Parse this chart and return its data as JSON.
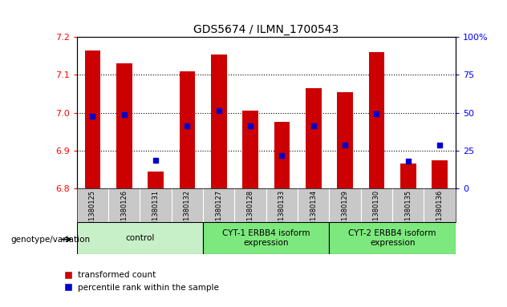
{
  "title": "GDS5674 / ILMN_1700543",
  "samples": [
    "GSM1380125",
    "GSM1380126",
    "GSM1380131",
    "GSM1380132",
    "GSM1380127",
    "GSM1380128",
    "GSM1380133",
    "GSM1380134",
    "GSM1380129",
    "GSM1380130",
    "GSM1380135",
    "GSM1380136"
  ],
  "bar_tops": [
    7.165,
    7.13,
    6.845,
    7.11,
    7.155,
    7.005,
    6.975,
    7.065,
    7.055,
    7.16,
    6.865,
    6.875
  ],
  "bar_base": 6.8,
  "blue_dots": [
    6.99,
    6.995,
    6.875,
    6.965,
    7.005,
    6.965,
    6.888,
    6.965,
    6.915,
    6.998,
    6.873,
    6.915
  ],
  "ylim": [
    6.8,
    7.2
  ],
  "yticks": [
    6.8,
    6.9,
    7.0,
    7.1,
    7.2
  ],
  "right_yticks": [
    0,
    25,
    50,
    75,
    100
  ],
  "right_ylabels": [
    "0",
    "25",
    "50",
    "75",
    "100%"
  ],
  "bar_color": "#cc0000",
  "dot_color": "#0000cc",
  "plot_bg": "#ffffff",
  "group_labels": [
    "control",
    "CYT-1 ERBB4 isoform\nexpression",
    "CYT-2 ERBB4 isoform\nexpression"
  ],
  "group_ranges": [
    [
      0,
      3
    ],
    [
      4,
      7
    ],
    [
      8,
      11
    ]
  ],
  "group_colors": [
    "#c8f0c8",
    "#7de87d",
    "#7de87d"
  ],
  "sample_bg": "#c8c8c8",
  "legend_red": "transformed count",
  "legend_blue": "percentile rank within the sample",
  "left_label": "genotype/variation"
}
